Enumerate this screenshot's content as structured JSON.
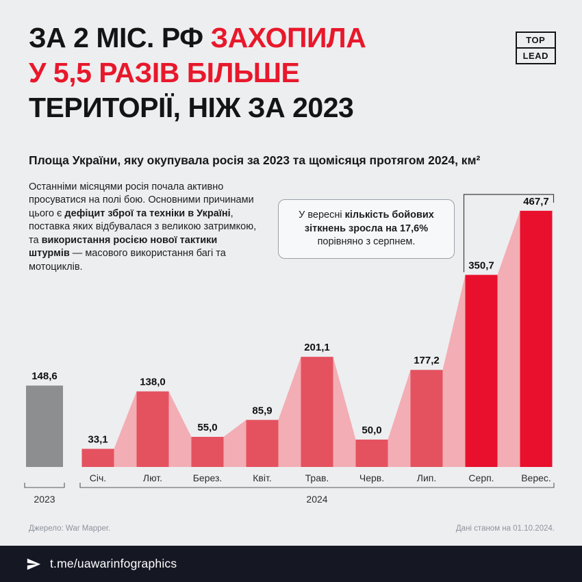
{
  "header": {
    "title": {
      "line1_black": "ЗА 2 МІС. РФ ",
      "line1_red": "ЗАХОПИЛА",
      "line2_red": "У 5,5 РАЗІВ БІЛЬШЕ",
      "line3_black": "ТЕРИТОРІЇ, НІЖ ЗА 2023"
    },
    "badge": {
      "line1": "TOP",
      "line2": "LEAD"
    },
    "accent_color": "#e8182b"
  },
  "subtitle": "Площа України, яку окупувала росія за 2023 та щомісяця протягом 2024, км²",
  "description": {
    "parts": [
      {
        "text": "Останніми місяцями росія почала активно просуватися на полі бою. Основними причинами цього є ",
        "bold": false
      },
      {
        "text": "дефіцит зброї та техніки в Україні",
        "bold": true
      },
      {
        "text": ", поставка яких відбувалася з великою затримкою, та ",
        "bold": false
      },
      {
        "text": "використання росією нової тактики штурмів",
        "bold": true
      },
      {
        "text": " — масового використання багі та мотоциклів.",
        "bold": false
      }
    ]
  },
  "chart_data": {
    "type": "bar",
    "title": "Площа України, яку окупувала росія за 2023 та щомісяця протягом 2024, км²",
    "unit": "км²",
    "categories": [
      "2023",
      "Січ.",
      "Лют.",
      "Берез.",
      "Квіт.",
      "Трав.",
      "Черв.",
      "Лип.",
      "Серп.",
      "Верес."
    ],
    "values": [
      148.6,
      33.1,
      138.0,
      55.0,
      85.9,
      201.1,
      50.0,
      177.2,
      350.7,
      467.7
    ],
    "value_labels": [
      "148,6",
      "33,1",
      "138,0",
      "55,0",
      "85,9",
      "201,1",
      "50,0",
      "177,2",
      "350,7",
      "467,7"
    ],
    "group_labels": [
      "2023",
      "2024"
    ],
    "highlight_categories": [
      "Серп.",
      "Верес."
    ],
    "connected_months": true,
    "ylim": [
      0,
      500
    ],
    "legend": "none",
    "colors": {
      "year_2023_bar": "#8d8e90",
      "month_bar": "#e4525f",
      "highlight_bar": "#e8102c",
      "ribbon": "#f3adb4",
      "value_label": "#101010"
    },
    "annotation": {
      "parts": [
        {
          "text": "У вересні ",
          "bold": false
        },
        {
          "text": "кількість бойових зіткнень зросла на 17,6%",
          "bold": true
        },
        {
          "text": " порівняно з серпнем.",
          "bold": false
        }
      ],
      "targets": [
        "Серп.",
        "Верес."
      ]
    }
  },
  "footer": {
    "source": "Джерело: War Mapper.",
    "as_of": "Дані станом на 01.10.2024.",
    "telegram": "t.me/uawarinfographics"
  }
}
